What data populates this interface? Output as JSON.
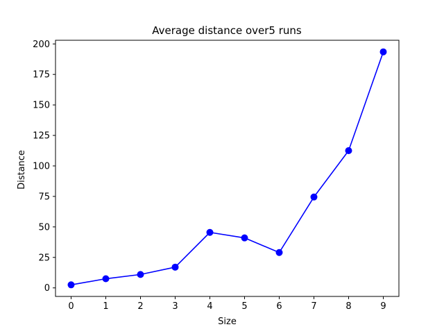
{
  "chart_data": {
    "type": "line",
    "title": "Average distance over5 runs",
    "xlabel": "Size",
    "ylabel": "Distance",
    "x": [
      0,
      1,
      2,
      3,
      4,
      5,
      6,
      7,
      8,
      9
    ],
    "series": [
      {
        "values": [
          2.5,
          7.5,
          11,
          17,
          45.5,
          41,
          29,
          74.5,
          112.5,
          193.5
        ],
        "color": "#0000ff",
        "marker": "circle"
      }
    ],
    "xlim": [
      -0.45,
      9.45
    ],
    "ylim": [
      -7,
      203
    ],
    "xticks": [
      "0",
      "1",
      "2",
      "3",
      "4",
      "5",
      "6",
      "7",
      "8",
      "9"
    ],
    "yticks": [
      "0",
      "25",
      "50",
      "75",
      "100",
      "125",
      "150",
      "175",
      "200"
    ],
    "grid": false,
    "legend": "none"
  }
}
